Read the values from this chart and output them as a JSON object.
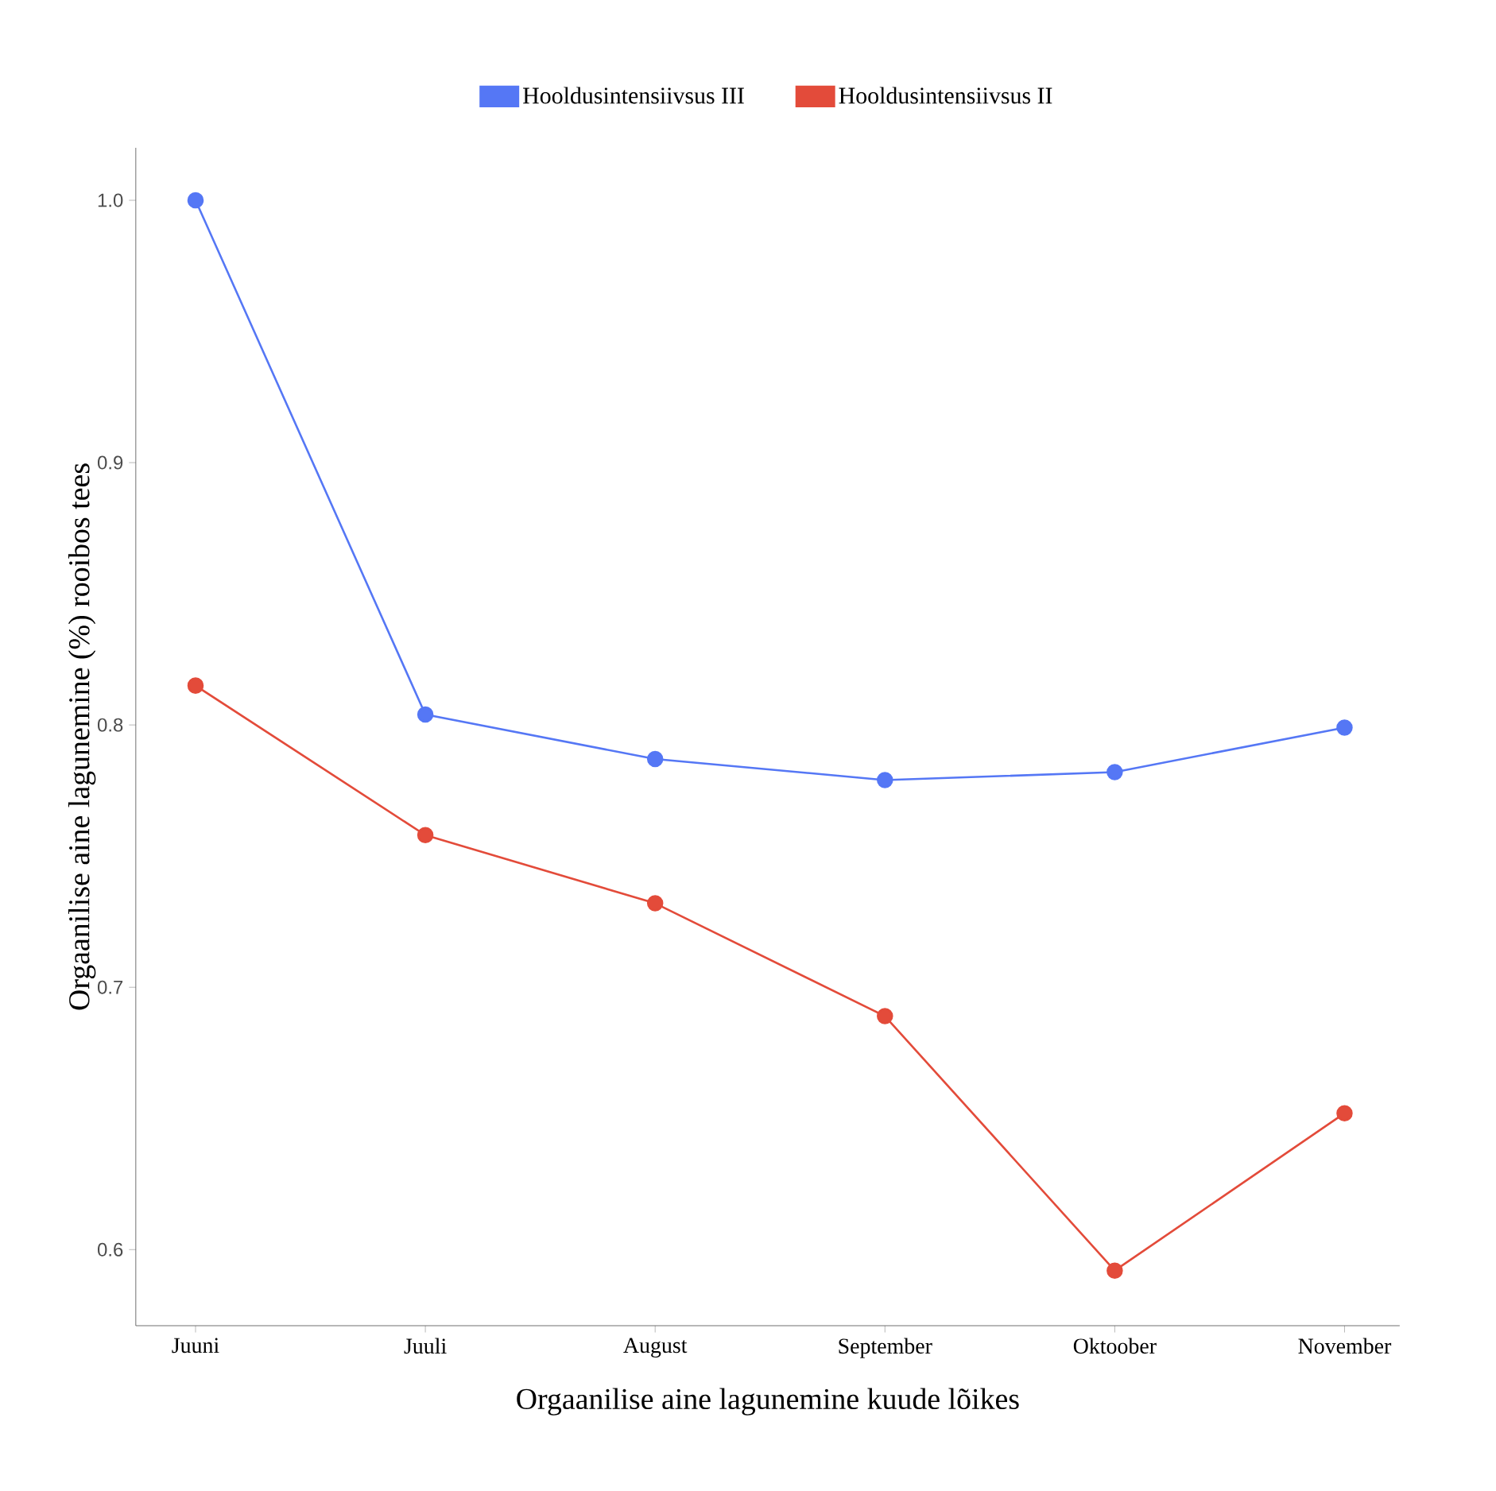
{
  "chart_data": {
    "type": "line",
    "xlabel": "Orgaanilise aine lagunemine kuude lõikes",
    "ylabel": "Orgaanilise aine lagunemine (%) rooibos tees",
    "categories": [
      "Juuni",
      "Juuli",
      "August",
      "September",
      "Oktoober",
      "November"
    ],
    "series": [
      {
        "name": "Hooldusintensiivsus III",
        "color": "#5577f5",
        "values": [
          1.0,
          0.804,
          0.787,
          0.779,
          0.782,
          0.799
        ]
      },
      {
        "name": "Hooldusintensiivsus II",
        "color": "#e34b3a",
        "values": [
          0.815,
          0.758,
          0.732,
          0.689,
          0.592,
          0.652
        ]
      }
    ],
    "ylim": [
      0.571,
      1.02
    ],
    "yticks": [
      0.6,
      0.7,
      0.8,
      0.9,
      {
        "value": 1.0,
        "label": "1.0"
      }
    ],
    "legend": "top",
    "marker": "circle",
    "line_style": "solid",
    "grid": false
  }
}
